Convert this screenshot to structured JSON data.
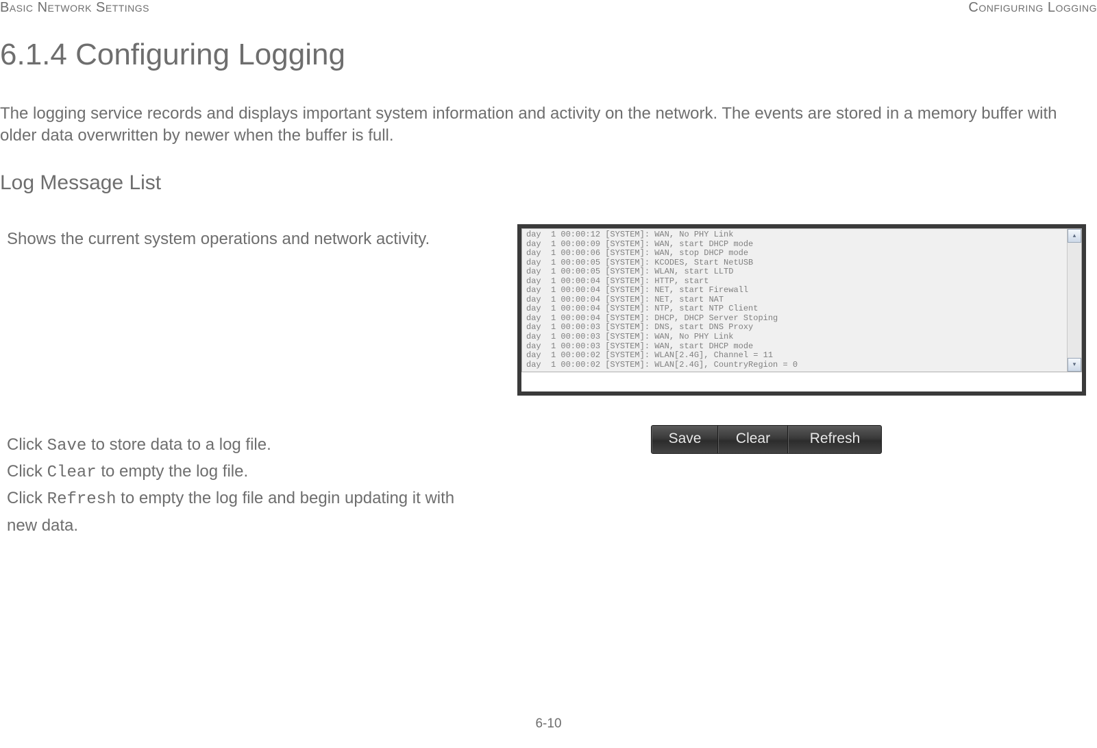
{
  "header": {
    "left": "Basic Network Settings",
    "right": "Configuring Logging"
  },
  "title": "6.1.4 Configuring Logging",
  "intro": "The logging service records and displays important system information and activity on the network. The events are stored in a memory buffer with older data overwritten by newer when the buffer is full.",
  "sub": "Log Message List",
  "desc": "Shows the current system operations and network activity.",
  "instr": {
    "p1a": "Click ",
    "p1m": "Save",
    "p1b": " to store data to a log file.",
    "p2a": "Click ",
    "p2m": "Clear",
    "p2b": " to empty the log file.",
    "p3a": "Click ",
    "p3m": "Refresh",
    "p3b": " to empty the log file and begin updating it with new data."
  },
  "log": {
    "bg": "#f0f0f0",
    "text_color": "#808080",
    "lines": [
      "day  1 00:00:12 [SYSTEM]: WAN, No PHY Link",
      "day  1 00:00:09 [SYSTEM]: WAN, start DHCP mode",
      "day  1 00:00:06 [SYSTEM]: WAN, stop DHCP mode",
      "day  1 00:00:05 [SYSTEM]: KCODES, Start NetUSB",
      "day  1 00:00:05 [SYSTEM]: WLAN, start LLTD",
      "day  1 00:00:04 [SYSTEM]: HTTP, start",
      "day  1 00:00:04 [SYSTEM]: NET, start Firewall",
      "day  1 00:00:04 [SYSTEM]: NET, start NAT",
      "day  1 00:00:04 [SYSTEM]: NTP, start NTP Client",
      "day  1 00:00:04 [SYSTEM]: DHCP, DHCP Server Stoping",
      "day  1 00:00:03 [SYSTEM]: DNS, start DNS Proxy",
      "day  1 00:00:03 [SYSTEM]: WAN, No PHY Link",
      "day  1 00:00:03 [SYSTEM]: WAN, start DHCP mode",
      "day  1 00:00:02 [SYSTEM]: WLAN[2.4G], Channel = 11",
      "day  1 00:00:02 [SYSTEM]: WLAN[2.4G], CountryRegion = 0"
    ]
  },
  "buttons": {
    "save": "Save",
    "clear": "Clear",
    "refresh": "Refresh"
  },
  "pagenum": "6-10"
}
